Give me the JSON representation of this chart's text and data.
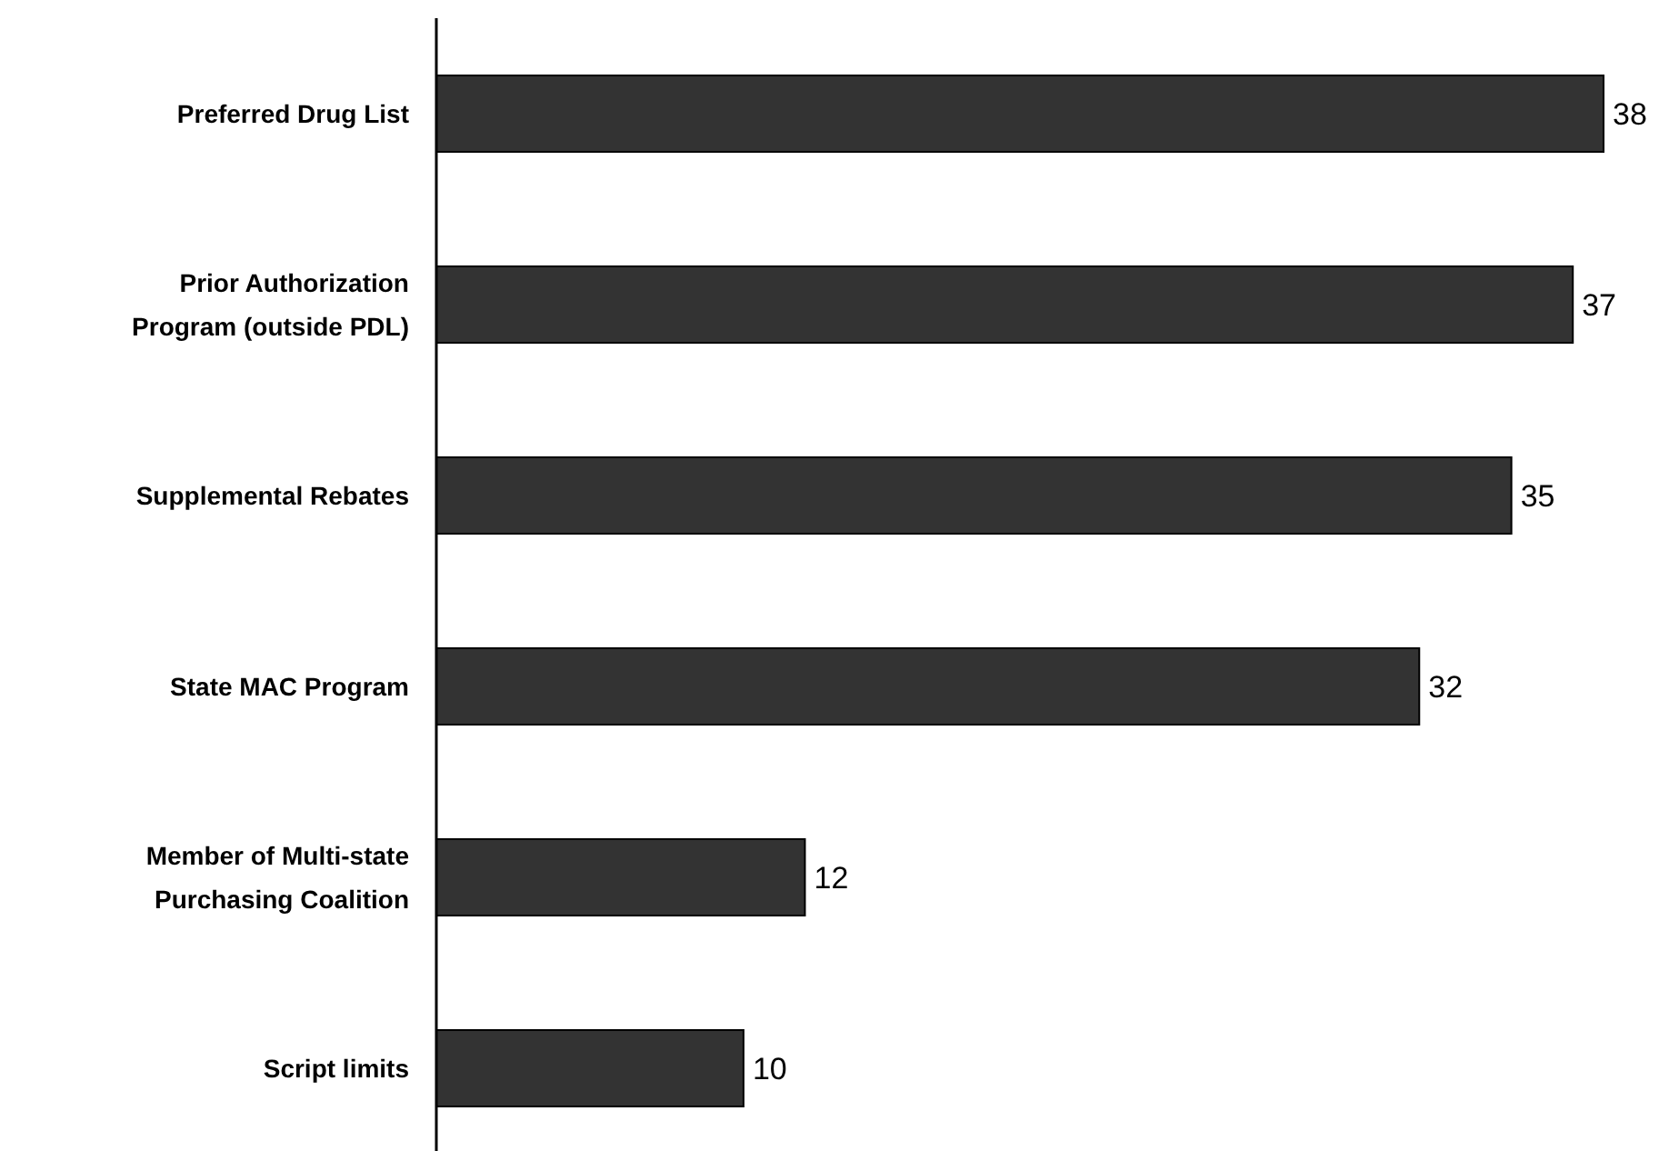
{
  "chart_data": {
    "type": "bar",
    "orientation": "horizontal",
    "categories": [
      "Preferred Drug List",
      "Prior Authorization\nProgram (outside PDL)",
      "Supplemental Rebates",
      "State MAC Program",
      "Member of Multi-state\nPurchasing Coalition",
      "Script limits"
    ],
    "values": [
      38,
      37,
      35,
      32,
      12,
      10
    ],
    "color": "#333333",
    "data_labels": true
  }
}
